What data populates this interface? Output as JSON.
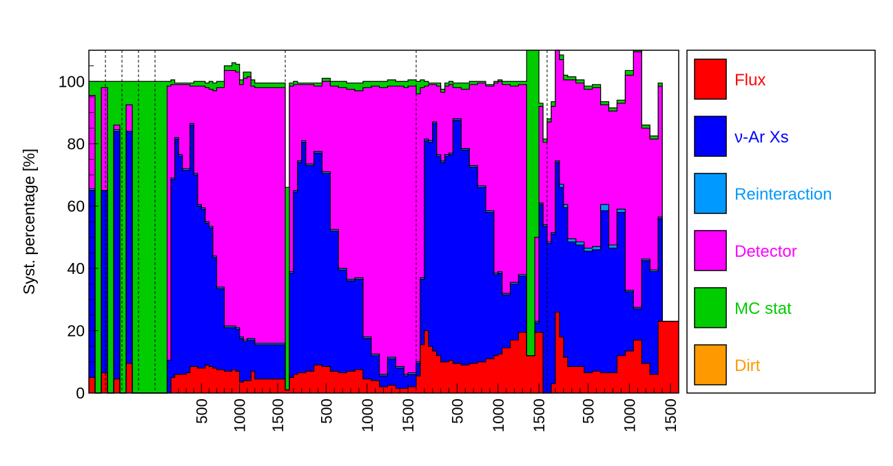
{
  "chart_data": {
    "type": "bar",
    "stacked": true,
    "ylabel": "Syst. percentage [%]",
    "ylim": [
      0,
      110
    ],
    "yticks": [
      0,
      20,
      40,
      60,
      80,
      100
    ],
    "legend": {
      "placement": "right"
    },
    "xtick_labels": [
      "500",
      "1000",
      "1500"
    ],
    "groups": [
      {
        "name": "",
        "xlim": [
          0,
          6
        ],
        "edges": [
          0,
          1,
          2,
          3,
          4,
          5,
          6,
          7,
          8,
          9,
          10,
          11,
          12
        ],
        "xticks": []
      },
      {
        "name": "",
        "xlim": [
          0,
          1600
        ],
        "edges": [
          0,
          50,
          100,
          150,
          200,
          250,
          300,
          350,
          400,
          450,
          500,
          550,
          600,
          650,
          700,
          750,
          800,
          850,
          900,
          950,
          1000,
          1050,
          1100,
          1150,
          1200,
          1250,
          1300,
          1350,
          1400,
          1450,
          1500,
          1550,
          1600
        ],
        "xticks": [
          500,
          1000,
          1500
        ]
      },
      {
        "name": "",
        "xlim": [
          0,
          1600
        ],
        "edges": [
          0,
          50,
          100,
          150,
          200,
          250,
          300,
          350,
          400,
          450,
          500,
          550,
          600,
          650,
          700,
          750,
          800,
          850,
          900,
          950,
          1000,
          1050,
          1100,
          1150,
          1200,
          1250,
          1300,
          1350,
          1400,
          1450,
          1500,
          1550,
          1600
        ],
        "xticks": [
          500,
          1000,
          1500
        ]
      },
      {
        "name": "",
        "xlim": [
          0,
          1600
        ],
        "edges": [
          0,
          50,
          100,
          150,
          200,
          250,
          300,
          350,
          400,
          450,
          500,
          550,
          600,
          650,
          700,
          750,
          800,
          850,
          900,
          950,
          1000,
          1050,
          1100,
          1150,
          1200,
          1250,
          1300,
          1350,
          1400,
          1450,
          1500,
          1550,
          1600
        ],
        "xticks": [
          500,
          1000,
          1500
        ]
      },
      {
        "name": "",
        "xlim": [
          0,
          1600
        ],
        "edges": [
          0,
          50,
          100,
          150,
          200,
          250,
          300,
          350,
          400,
          450,
          500,
          550,
          600,
          650,
          700,
          750,
          800,
          850,
          900,
          950,
          1000,
          1050,
          1100,
          1150,
          1200,
          1250,
          1300,
          1350,
          1400,
          1450,
          1500,
          1550,
          1600
        ],
        "xticks": [
          500,
          1000,
          1500
        ]
      }
    ],
    "group_layout": [
      {
        "bins_in_group": 12
      },
      {
        "bins_in_group": 32
      },
      {
        "bins_in_group": 32
      },
      {
        "bins_in_group": 32
      },
      {
        "bins_in_group": 32
      }
    ],
    "series": [
      {
        "name": "Flux",
        "color": "#ff0000",
        "values": [
          5,
          0,
          6.5,
          0,
          4.5,
          0,
          9.5,
          0,
          0,
          0,
          0,
          0,
          0,
          0,
          5,
          6,
          6,
          6,
          6.5,
          8.5,
          8.5,
          8,
          8,
          9,
          8.5,
          8,
          7.5,
          7.5,
          7,
          7,
          7.5,
          7,
          3.5,
          4,
          4,
          7,
          4.5,
          4.5,
          4.5,
          4.5,
          4.5,
          4.5,
          4.5,
          4.5,
          1,
          5,
          6,
          6.5,
          6.5,
          7,
          7,
          9,
          9,
          8.5,
          8.5,
          7,
          7,
          6.5,
          6.5,
          7,
          7,
          7.5,
          7.5,
          4.5,
          4.5,
          4,
          4,
          2,
          2,
          2.5,
          2.5,
          1.5,
          1.5,
          1.5,
          2,
          2,
          5.5,
          15.5,
          20,
          15,
          13.5,
          12,
          10,
          10,
          10.5,
          9.5,
          9.5,
          9,
          9,
          9.5,
          9.5,
          10,
          10,
          11,
          11,
          12,
          12.5,
          14.5,
          14.5,
          17,
          17,
          19.5,
          19.5,
          12,
          12,
          19.5,
          19.5,
          0,
          0,
          3,
          26,
          18,
          11.5,
          8.5,
          8.5,
          8.5,
          8.5,
          6.5,
          6.5,
          7,
          7,
          6.5,
          6.5,
          6.5,
          6.5,
          12,
          12,
          13.5,
          13.5,
          17,
          17,
          9.5,
          9.5,
          6,
          6,
          23,
          23,
          23,
          23,
          23
        ]
      },
      {
        "name": "ν-Ar Xs",
        "color": "#0000ff",
        "values": [
          60,
          0,
          58.5,
          0,
          79.5,
          0,
          74.5,
          0,
          0,
          0,
          0,
          0,
          0,
          10.5,
          63.5,
          75.5,
          70,
          65.5,
          65,
          77.5,
          61.5,
          52,
          51,
          45.5,
          44.5,
          35.5,
          26,
          26,
          14,
          14,
          13.5,
          13.5,
          14,
          12.5,
          13,
          10,
          11,
          11,
          11,
          11,
          11,
          11,
          11,
          11,
          0,
          33.5,
          58.5,
          67.5,
          74,
          66,
          66,
          68,
          68,
          62,
          62,
          45,
          45,
          33,
          33,
          29,
          29,
          29,
          29,
          13,
          13,
          8,
          8,
          3.5,
          3.5,
          8.5,
          8.5,
          6.5,
          6.5,
          4,
          4,
          4,
          4,
          21,
          61,
          65.5,
          73,
          64,
          64,
          66,
          66,
          78,
          78,
          69,
          69,
          63,
          63,
          56,
          56,
          47,
          47,
          26,
          26,
          17,
          17,
          18,
          18,
          18,
          18,
          0,
          0,
          3,
          41,
          53.5,
          48,
          48,
          48,
          48,
          48,
          40,
          40,
          39,
          39,
          39,
          39,
          39,
          39,
          52,
          52,
          40,
          40,
          46,
          46,
          19,
          19,
          10,
          10,
          33,
          33,
          33,
          33,
          33
        ]
      },
      {
        "name": "Reinteraction",
        "color": "#0099ff",
        "values": [
          0.5,
          0,
          0,
          0,
          0.5,
          0,
          0,
          0,
          0,
          0,
          0,
          0,
          0,
          0,
          0.5,
          0.5,
          0.5,
          0.5,
          0.5,
          0.5,
          0.5,
          0.5,
          0.5,
          0.5,
          0.5,
          0.5,
          0.5,
          0.5,
          0.5,
          0.5,
          0.5,
          0.5,
          0.5,
          0.5,
          0.5,
          0.5,
          0.5,
          0.5,
          0.5,
          0.5,
          0.5,
          0.5,
          0.5,
          0.5,
          0,
          0.5,
          0.5,
          0.5,
          0.5,
          0.5,
          0.5,
          0.5,
          0.5,
          0.5,
          0.5,
          0.5,
          0.5,
          0.5,
          0.5,
          0.5,
          0.5,
          0.5,
          0.5,
          0.5,
          0.5,
          0.5,
          0.5,
          0.5,
          0.5,
          0.5,
          0.5,
          0.5,
          0.5,
          0.5,
          0.5,
          0.5,
          0.5,
          0.5,
          0.5,
          0.5,
          0.5,
          0.5,
          0.5,
          0.5,
          0.5,
          0.5,
          0.5,
          0.5,
          0.5,
          0.5,
          0.5,
          0.5,
          0.5,
          0.5,
          0.5,
          0.5,
          0.5,
          0.5,
          0.5,
          0.5,
          0.5,
          0.5,
          0.5,
          0,
          0,
          0.5,
          0.5,
          0.5,
          0.5,
          0.5,
          0.5,
          1,
          1,
          1,
          1,
          1,
          1,
          1,
          1,
          1,
          1,
          2,
          2,
          1,
          1,
          1,
          1,
          0.5,
          0.5,
          0.5,
          0.5,
          0.5,
          0.5,
          0.5,
          0.5,
          0.5
        ]
      },
      {
        "name": "Detector",
        "color": "#ff00ff",
        "values": [
          30,
          0,
          33,
          0,
          1.5,
          0,
          8.5,
          0,
          0,
          0,
          0,
          0,
          0,
          88,
          30,
          17,
          22.5,
          27,
          27,
          12,
          28,
          38,
          39,
          43,
          44,
          53,
          64,
          64,
          82,
          82,
          82,
          82,
          81,
          84,
          84,
          81,
          82,
          82,
          82,
          82,
          82,
          82,
          82,
          82,
          0,
          59.5,
          34,
          24.5,
          18,
          25.5,
          25.5,
          21,
          21,
          29,
          29,
          46,
          46,
          58,
          58,
          61,
          61,
          60,
          60,
          80,
          80,
          86,
          86,
          92,
          92,
          87,
          87,
          90,
          90,
          92,
          92,
          92,
          86,
          61,
          17,
          18,
          12,
          22,
          22,
          22,
          22,
          10,
          10,
          19,
          19,
          26,
          26,
          33,
          33,
          40,
          40,
          61,
          61,
          67,
          67,
          63,
          63,
          61,
          61,
          0,
          0,
          27,
          31,
          26.5,
          38.5,
          40.5,
          40.5,
          40,
          40,
          51,
          51,
          51,
          51,
          51,
          51,
          51,
          51,
          32,
          32,
          43,
          43,
          34,
          34,
          69,
          69,
          82,
          82,
          42,
          42,
          42,
          42,
          42
        ]
      },
      {
        "name": "MC stat",
        "color": "#00cc00",
        "values": [
          4.5,
          100,
          2,
          100,
          14,
          100,
          7.5,
          100,
          100,
          100,
          100,
          100,
          100,
          1.5,
          1.5,
          0.5,
          0.5,
          0.5,
          0.5,
          1,
          1.5,
          1.5,
          1.5,
          1.5,
          2.5,
          2.5,
          2,
          2,
          1.5,
          1.5,
          2.5,
          2.5,
          1.5,
          2,
          1.5,
          2,
          1.5,
          1.5,
          1.5,
          1.5,
          1.5,
          1.5,
          1.5,
          1.5,
          65,
          1,
          1,
          0.5,
          0.5,
          0.5,
          0.5,
          1,
          1,
          1,
          1,
          1.5,
          1.5,
          2,
          2,
          2,
          2,
          2.5,
          2.5,
          2,
          2,
          1.5,
          1.5,
          2,
          2,
          2,
          2,
          1.5,
          1.5,
          2,
          2,
          2,
          4,
          2.5,
          1.5,
          0.5,
          0.5,
          1,
          1,
          1,
          1,
          1.5,
          1.5,
          2,
          2,
          1,
          1,
          0.5,
          0.5,
          0.5,
          0.5,
          0.5,
          0.5,
          1,
          1,
          1.5,
          1.5,
          1,
          1,
          100,
          100,
          66,
          1,
          1,
          1,
          1.5,
          1.5,
          1.5,
          1.5,
          1,
          1,
          1,
          1,
          1,
          1,
          1,
          1,
          1,
          1,
          1,
          1,
          1,
          1,
          1.5,
          1.5,
          1.5,
          1.5,
          1,
          1,
          1,
          1,
          1
        ]
      },
      {
        "name": "Dirt",
        "color": "#ff9900",
        "values": []
      }
    ]
  }
}
